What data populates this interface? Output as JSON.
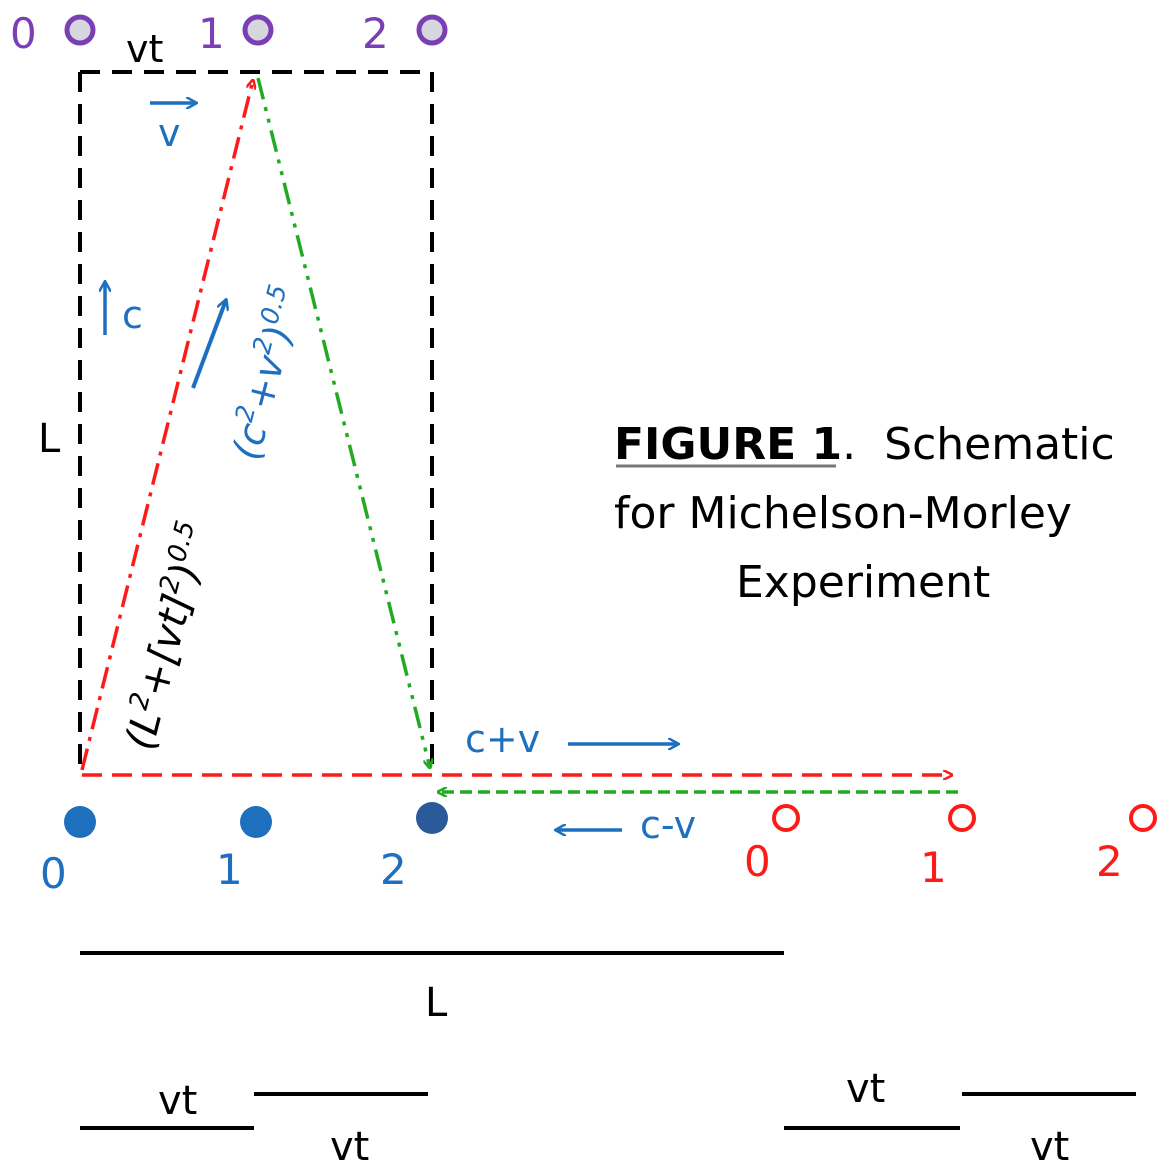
{
  "colors": {
    "black": "#000000",
    "blue": "#1f6fbf",
    "red": "#ff1a1a",
    "green": "#22aa22",
    "purple": "#7a3fb5",
    "mirror_gray": "#d6d6de",
    "caption_underline": "#777777"
  },
  "top_positions": {
    "labels": [
      "0",
      "1",
      "2"
    ]
  },
  "labels": {
    "vt_top": "vt",
    "v_label": "v",
    "c_label": "c",
    "L_left": "L",
    "L_bottom": "L",
    "c_plus_v": "c+v",
    "c_minus_v": "c-v",
    "hyp_red_base": "(L",
    "hyp_red_sup1": "2",
    "hyp_red_mid": "+[vt]",
    "hyp_red_sup2": "2",
    "hyp_red_end": ")",
    "hyp_red_exp": "0.5",
    "hyp_blue_base": "(c",
    "hyp_blue_sup1": "2",
    "hyp_blue_mid": "+v",
    "hyp_blue_sup2": "2",
    "hyp_blue_end": ")",
    "hyp_blue_exp": "0.5"
  },
  "blue_positions": {
    "labels": [
      "0",
      "1",
      "2"
    ]
  },
  "red_positions": {
    "labels": [
      "0",
      "1",
      "2"
    ]
  },
  "caption": {
    "bold": "FIGURE 1",
    "dot": ".",
    "line1_rest": "Schematic",
    "line2": "for Michelson-Morley",
    "line3": "Experiment"
  },
  "fractions": {
    "left_numerator": "vt",
    "left_denominator": "vt",
    "right_numerator": "vt",
    "right_denominator": "vt"
  }
}
